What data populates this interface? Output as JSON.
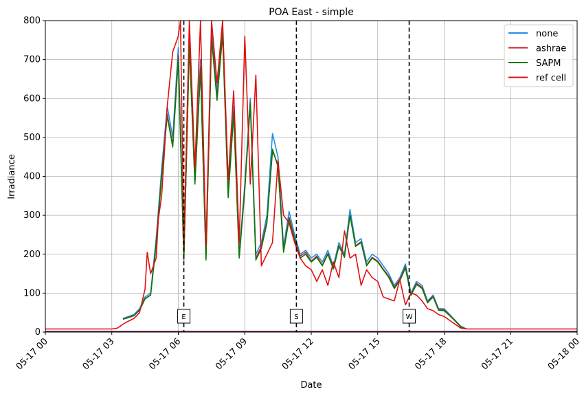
{
  "chart_data": {
    "type": "line",
    "title": "POA East - simple",
    "xlabel": "Date",
    "ylabel": "Irradiance",
    "ylim": [
      0,
      800
    ],
    "xlim_hours": [
      0,
      24
    ],
    "grid": true,
    "legend_placement": "top-right",
    "x_ticks": [
      {
        "hour": 0,
        "label": "05-17 00"
      },
      {
        "hour": 3,
        "label": "05-17 03"
      },
      {
        "hour": 6,
        "label": "05-17 06"
      },
      {
        "hour": 9,
        "label": "05-17 09"
      },
      {
        "hour": 12,
        "label": "05-17 12"
      },
      {
        "hour": 15,
        "label": "05-17 15"
      },
      {
        "hour": 18,
        "label": "05-17 18"
      },
      {
        "hour": 21,
        "label": "05-17 21"
      },
      {
        "hour": 24,
        "label": "05-18 00"
      }
    ],
    "y_ticks": [
      0,
      100,
      200,
      300,
      400,
      500,
      600,
      700,
      800
    ],
    "vlines": [
      {
        "hour": 6.25,
        "label": "E"
      },
      {
        "hour": 11.33,
        "label": "S"
      },
      {
        "hour": 16.42,
        "label": "W"
      }
    ],
    "series": [
      {
        "name": "none",
        "color": "#1f8fe0",
        "x": [
          3.5,
          3.75,
          4.0,
          4.25,
          4.5,
          4.75,
          5.0,
          5.25,
          5.5,
          5.75,
          6.0,
          6.25,
          6.5,
          6.75,
          7.0,
          7.25,
          7.5,
          7.75,
          8.0,
          8.25,
          8.5,
          8.75,
          9.0,
          9.25,
          9.5,
          9.75,
          10.0,
          10.25,
          10.5,
          10.75,
          11.0,
          11.25,
          11.5,
          11.75,
          12.0,
          12.25,
          12.5,
          12.75,
          13.0,
          13.25,
          13.5,
          13.75,
          14.0,
          14.25,
          14.5,
          14.75,
          15.0,
          15.25,
          15.5,
          15.75,
          16.0,
          16.25,
          16.5,
          16.75,
          17.0,
          17.25,
          17.5,
          17.75,
          18.0,
          18.25,
          18.5,
          18.75,
          19.0
        ],
        "y": [
          35,
          40,
          45,
          60,
          90,
          100,
          240,
          420,
          580,
          500,
          730,
          200,
          760,
          400,
          700,
          200,
          780,
          620,
          790,
          360,
          580,
          200,
          380,
          600,
          200,
          230,
          300,
          510,
          450,
          220,
          310,
          250,
          200,
          210,
          190,
          200,
          180,
          210,
          170,
          230,
          200,
          315,
          230,
          240,
          180,
          200,
          190,
          170,
          150,
          120,
          140,
          175,
          100,
          130,
          120,
          80,
          95,
          60,
          60,
          45,
          30,
          15,
          8
        ]
      },
      {
        "name": "ashrae",
        "color": "#c0202a",
        "x": [
          3.5,
          3.75,
          4.0,
          4.25,
          4.5,
          4.75,
          5.0,
          5.25,
          5.5,
          5.75,
          6.0,
          6.25,
          6.5,
          6.75,
          7.0,
          7.25,
          7.5,
          7.75,
          8.0,
          8.25,
          8.5,
          8.75,
          9.0,
          9.25,
          9.5,
          9.75,
          10.0,
          10.25,
          10.5,
          10.75,
          11.0,
          11.25,
          11.5,
          11.75,
          12.0,
          12.25,
          12.5,
          12.75,
          13.0,
          13.25,
          13.5,
          13.75,
          14.0,
          14.25,
          14.5,
          14.75,
          15.0,
          15.25,
          15.5,
          15.75,
          16.0,
          16.25,
          16.5,
          16.75,
          17.0,
          17.25,
          17.5,
          17.75,
          18.0,
          18.25,
          18.5,
          18.75,
          19.0
        ],
        "y": [
          34,
          38,
          43,
          57,
          86,
          95,
          230,
          405,
          560,
          480,
          710,
          190,
          740,
          385,
          680,
          190,
          760,
          600,
          770,
          350,
          565,
          195,
          370,
          590,
          190,
          220,
          285,
          465,
          430,
          210,
          295,
          240,
          195,
          205,
          182,
          195,
          172,
          202,
          165,
          222,
          195,
          300,
          222,
          232,
          172,
          192,
          182,
          162,
          143,
          115,
          135,
          168,
          96,
          125,
          115,
          77,
          92,
          58,
          57,
          43,
          29,
          14,
          8
        ]
      },
      {
        "name": "SAPM",
        "color": "#0a7a0a",
        "x": [
          3.5,
          3.75,
          4.0,
          4.25,
          4.5,
          4.75,
          5.0,
          5.25,
          5.5,
          5.75,
          6.0,
          6.25,
          6.5,
          6.75,
          7.0,
          7.25,
          7.5,
          7.75,
          8.0,
          8.25,
          8.5,
          8.75,
          9.0,
          9.25,
          9.5,
          9.75,
          10.0,
          10.25,
          10.5,
          10.75,
          11.0,
          11.25,
          11.5,
          11.75,
          12.0,
          12.25,
          12.5,
          12.75,
          13.0,
          13.25,
          13.5,
          13.75,
          14.0,
          14.25,
          14.5,
          14.75,
          15.0,
          15.25,
          15.5,
          15.75,
          16.0,
          16.25,
          16.5,
          16.75,
          17.0,
          17.25,
          17.5,
          17.75,
          18.0,
          18.25,
          18.5,
          18.75,
          19.0
        ],
        "y": [
          33,
          37,
          42,
          56,
          85,
          95,
          225,
          400,
          555,
          475,
          700,
          185,
          735,
          380,
          675,
          185,
          755,
          595,
          765,
          345,
          560,
          190,
          365,
          585,
          185,
          215,
          280,
          470,
          425,
          205,
          290,
          235,
          190,
          200,
          180,
          192,
          170,
          200,
          162,
          220,
          192,
          300,
          220,
          230,
          170,
          190,
          180,
          160,
          140,
          112,
          132,
          165,
          94,
          122,
          112,
          75,
          90,
          56,
          55,
          42,
          28,
          13,
          8
        ]
      },
      {
        "name": "ref cell",
        "color": "#e01010",
        "x": [
          0,
          0.5,
          1.0,
          1.5,
          2.0,
          2.5,
          3.0,
          3.25,
          3.5,
          3.75,
          4.0,
          4.25,
          4.5,
          4.6,
          4.75,
          5.0,
          5.1,
          5.25,
          5.5,
          5.75,
          6.0,
          6.1,
          6.25,
          6.5,
          6.75,
          7.0,
          7.25,
          7.5,
          7.75,
          8.0,
          8.25,
          8.5,
          8.75,
          9.0,
          9.25,
          9.5,
          9.75,
          10.0,
          10.25,
          10.5,
          10.75,
          11.0,
          11.25,
          11.5,
          11.75,
          12.0,
          12.25,
          12.5,
          12.75,
          13.0,
          13.25,
          13.5,
          13.75,
          14.0,
          14.25,
          14.5,
          14.75,
          15.0,
          15.25,
          15.5,
          15.75,
          16.0,
          16.25,
          16.5,
          16.75,
          17.0,
          17.25,
          17.5,
          17.75,
          18.0,
          18.25,
          18.5,
          18.75,
          19.0,
          19.5,
          20.0,
          21.0,
          22.0,
          23.0,
          24.0
        ],
        "y": [
          8,
          8,
          8,
          8,
          8,
          8,
          8,
          10,
          20,
          28,
          35,
          50,
          110,
          205,
          150,
          190,
          290,
          350,
          580,
          720,
          760,
          800,
          220,
          800,
          420,
          800,
          220,
          800,
          640,
          800,
          390,
          620,
          230,
          760,
          380,
          660,
          170,
          200,
          230,
          440,
          300,
          280,
          230,
          190,
          170,
          160,
          130,
          160,
          120,
          180,
          140,
          260,
          190,
          200,
          120,
          160,
          140,
          130,
          90,
          85,
          80,
          135,
          70,
          100,
          95,
          80,
          60,
          55,
          45,
          40,
          30,
          20,
          10,
          8,
          8,
          8,
          8,
          8,
          8,
          8
        ]
      }
    ]
  }
}
